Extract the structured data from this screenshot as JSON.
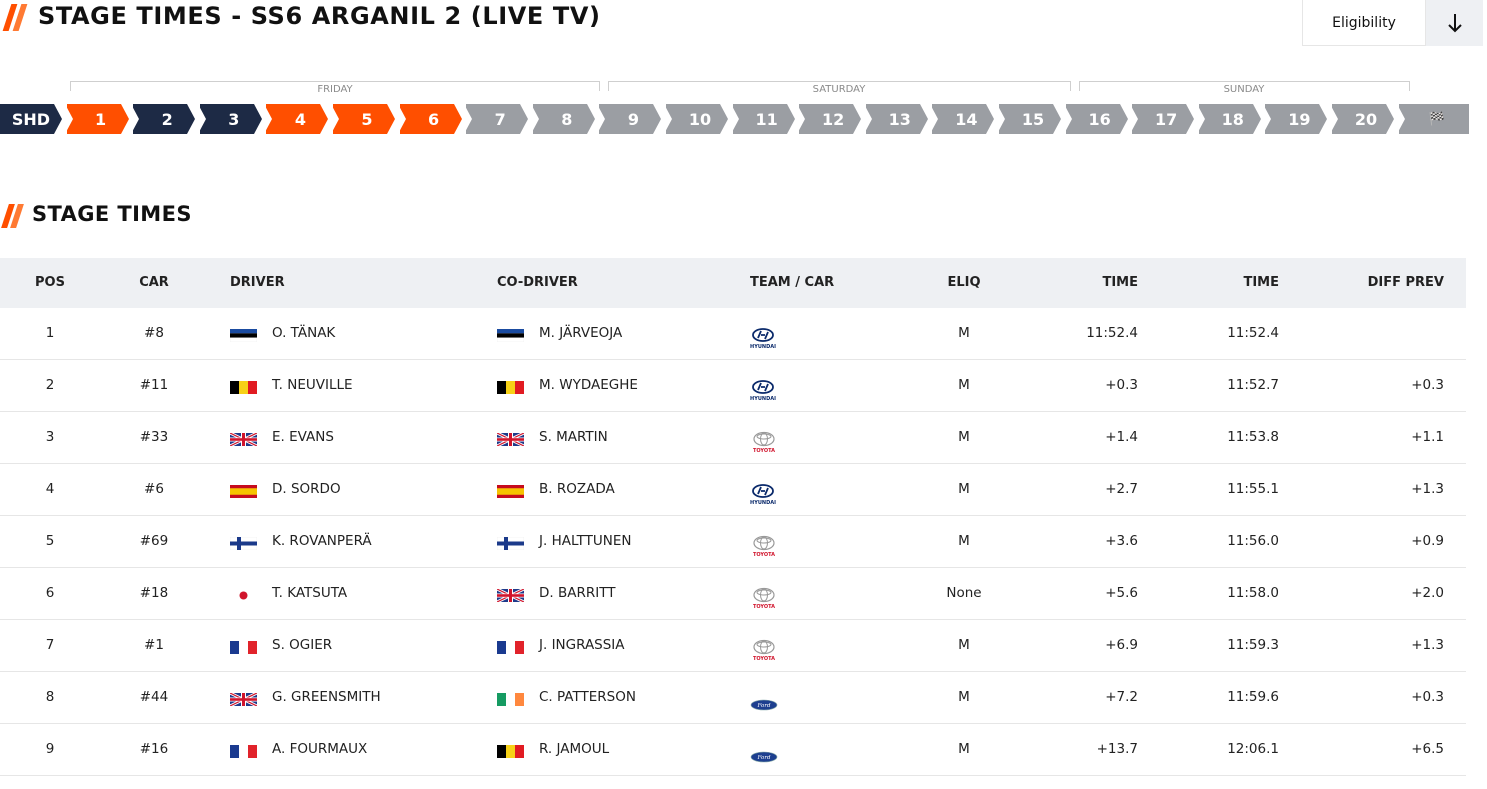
{
  "header": {
    "title": "STAGE TIMES - SS6 ARGANIL 2 (LIVE TV)",
    "eligibility_label": "Eligibility",
    "download_icon": "arrow-down-icon"
  },
  "days": [
    {
      "label": "FRIDAY"
    },
    {
      "label": "SATURDAY"
    },
    {
      "label": "SUNDAY"
    }
  ],
  "stages": [
    {
      "label": "SHD",
      "state": "done"
    },
    {
      "label": "1",
      "state": "live"
    },
    {
      "label": "2",
      "state": "done"
    },
    {
      "label": "3",
      "state": "done"
    },
    {
      "label": "4",
      "state": "live"
    },
    {
      "label": "5",
      "state": "live"
    },
    {
      "label": "6",
      "state": "live"
    },
    {
      "label": "7",
      "state": "future"
    },
    {
      "label": "8",
      "state": "future"
    },
    {
      "label": "9",
      "state": "future"
    },
    {
      "label": "10",
      "state": "future"
    },
    {
      "label": "11",
      "state": "future"
    },
    {
      "label": "12",
      "state": "future"
    },
    {
      "label": "13",
      "state": "future"
    },
    {
      "label": "14",
      "state": "future"
    },
    {
      "label": "15",
      "state": "future"
    },
    {
      "label": "16",
      "state": "future"
    },
    {
      "label": "17",
      "state": "future"
    },
    {
      "label": "18",
      "state": "future"
    },
    {
      "label": "19",
      "state": "future"
    },
    {
      "label": "20",
      "state": "future"
    },
    {
      "label": "🏁",
      "state": "future",
      "icon": "finish-flag-icon"
    }
  ],
  "colors": {
    "done": "#1d2a45",
    "live": "#ff4f00",
    "future": "#9b9ea3",
    "accent": "#ff4f00"
  },
  "section": {
    "title": "STAGE TIMES"
  },
  "table": {
    "columns": {
      "pos": "POS",
      "car": "CAR",
      "driver": "DRIVER",
      "codriver": "CO-DRIVER",
      "team": "TEAM / CAR",
      "eliq": "ELIQ",
      "time1": "TIME",
      "time2": "TIME",
      "diff": "DIFF PREV"
    },
    "rows": [
      {
        "pos": "1",
        "car": "#8",
        "driver_flag": "EST",
        "driver": "O. TÄNAK",
        "codriver_flag": "EST",
        "codriver": "M. JÄRVEOJA",
        "team": "hyundai",
        "eliq": "M",
        "time1": "11:52.4",
        "time2": "11:52.4",
        "diff": ""
      },
      {
        "pos": "2",
        "car": "#11",
        "driver_flag": "BEL",
        "driver": "T. NEUVILLE",
        "codriver_flag": "BEL",
        "codriver": "M. WYDAEGHE",
        "team": "hyundai",
        "eliq": "M",
        "time1": "+0.3",
        "time2": "11:52.7",
        "diff": "+0.3"
      },
      {
        "pos": "3",
        "car": "#33",
        "driver_flag": "GBR",
        "driver": "E. EVANS",
        "codriver_flag": "GBR",
        "codriver": "S. MARTIN",
        "team": "toyota",
        "eliq": "M",
        "time1": "+1.4",
        "time2": "11:53.8",
        "diff": "+1.1"
      },
      {
        "pos": "4",
        "car": "#6",
        "driver_flag": "ESP",
        "driver": "D. SORDO",
        "codriver_flag": "ESP",
        "codriver": "B. ROZADA",
        "team": "hyundai",
        "eliq": "M",
        "time1": "+2.7",
        "time2": "11:55.1",
        "diff": "+1.3"
      },
      {
        "pos": "5",
        "car": "#69",
        "driver_flag": "FIN",
        "driver": "K. ROVANPERÄ",
        "codriver_flag": "FIN",
        "codriver": "J. HALTTUNEN",
        "team": "toyota",
        "eliq": "M",
        "time1": "+3.6",
        "time2": "11:56.0",
        "diff": "+0.9"
      },
      {
        "pos": "6",
        "car": "#18",
        "driver_flag": "JPN",
        "driver": "T. KATSUTA",
        "codriver_flag": "GBR",
        "codriver": "D. BARRITT",
        "team": "toyota",
        "eliq": "None",
        "time1": "+5.6",
        "time2": "11:58.0",
        "diff": "+2.0"
      },
      {
        "pos": "7",
        "car": "#1",
        "driver_flag": "FRA",
        "driver": "S. OGIER",
        "codriver_flag": "FRA",
        "codriver": "J. INGRASSIA",
        "team": "toyota",
        "eliq": "M",
        "time1": "+6.9",
        "time2": "11:59.3",
        "diff": "+1.3"
      },
      {
        "pos": "8",
        "car": "#44",
        "driver_flag": "GBR",
        "driver": "G. GREENSMITH",
        "codriver_flag": "IRL",
        "codriver": "C. PATTERSON",
        "team": "ford",
        "eliq": "M",
        "time1": "+7.2",
        "time2": "11:59.6",
        "diff": "+0.3"
      },
      {
        "pos": "9",
        "car": "#16",
        "driver_flag": "FRA",
        "driver": "A. FOURMAUX",
        "codriver_flag": "BEL",
        "codriver": "R. JAMOUL",
        "team": "ford",
        "eliq": "M",
        "time1": "+13.7",
        "time2": "12:06.1",
        "diff": "+6.5"
      }
    ]
  }
}
